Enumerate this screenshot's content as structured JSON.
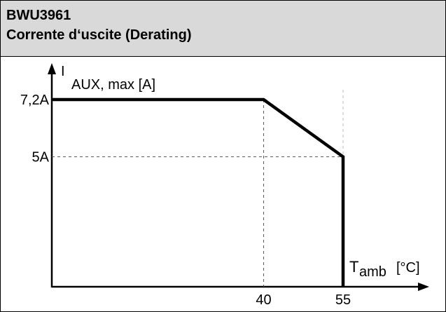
{
  "header": {
    "title": "BWU3961",
    "subtitle": "Corrente d‘uscite (Derating)"
  },
  "chart_data": {
    "type": "line",
    "ylabel_symbol": "I",
    "ylabel_subscript": "AUX, max [A]",
    "xlabel_symbol": "T",
    "xlabel_subscript": "amb",
    "xlabel_unit": "[°C]",
    "x_ticks": [
      "40",
      "55"
    ],
    "y_ticks": [
      "7,2A",
      "5A"
    ],
    "series": [
      {
        "x": [
          0,
          40,
          55,
          55
        ],
        "y": [
          7.2,
          7.2,
          5,
          0
        ]
      }
    ],
    "xlim": [
      0,
      55
    ],
    "ylim": [
      0,
      7.2
    ],
    "grid": false,
    "guide_lines": [
      {
        "x": 40,
        "y": 7.2
      },
      {
        "x": 55,
        "y": 5
      }
    ],
    "colors": {
      "line": "#000000",
      "guide": "#555555",
      "header_bg": "#d9d9d9"
    }
  }
}
